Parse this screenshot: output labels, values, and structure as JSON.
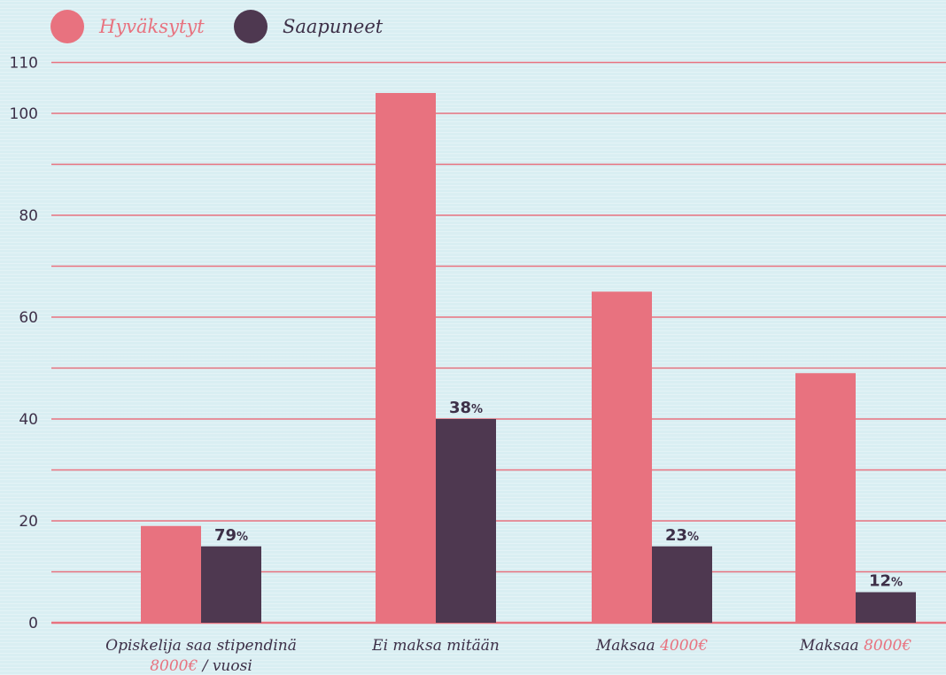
{
  "chart_data": {
    "type": "bar",
    "legend": {
      "placement": "top-left"
    },
    "grid": true,
    "ylim": [
      0,
      110
    ],
    "yticks": [
      0,
      20,
      40,
      60,
      80,
      100,
      110
    ],
    "categories": [
      [
        {
          "text": "Opiskelija saa stipendinä",
          "accent": false
        }
      ],
      [
        {
          "text": "Ei maksa mitään",
          "accent": false
        }
      ],
      [
        {
          "text": "Maksaa ",
          "accent": false
        },
        {
          "text": "4000€",
          "accent": true
        }
      ],
      [
        {
          "text": "Maksaa ",
          "accent": false
        },
        {
          "text": "8000€",
          "accent": true
        }
      ]
    ],
    "category_second_line": [
      [
        {
          "text": "8000€",
          "accent": true
        },
        {
          "text": " / vuosi",
          "accent": false
        }
      ],
      [],
      [],
      []
    ],
    "series": [
      {
        "name": "Hyväksytyt",
        "color": "#e8727f",
        "values": [
          19,
          104,
          65,
          49
        ]
      },
      {
        "name": "Saapuneet",
        "color": "#4e3850",
        "values": [
          15,
          40,
          15,
          6
        ]
      }
    ],
    "data_labels": {
      "series": "Saapuneet",
      "numbers": [
        "79",
        "38",
        "23",
        "12"
      ],
      "suffix": "%"
    },
    "colors": {
      "accent": "#e8727f",
      "text": "#3d3048",
      "grid": "#e8727f"
    }
  }
}
